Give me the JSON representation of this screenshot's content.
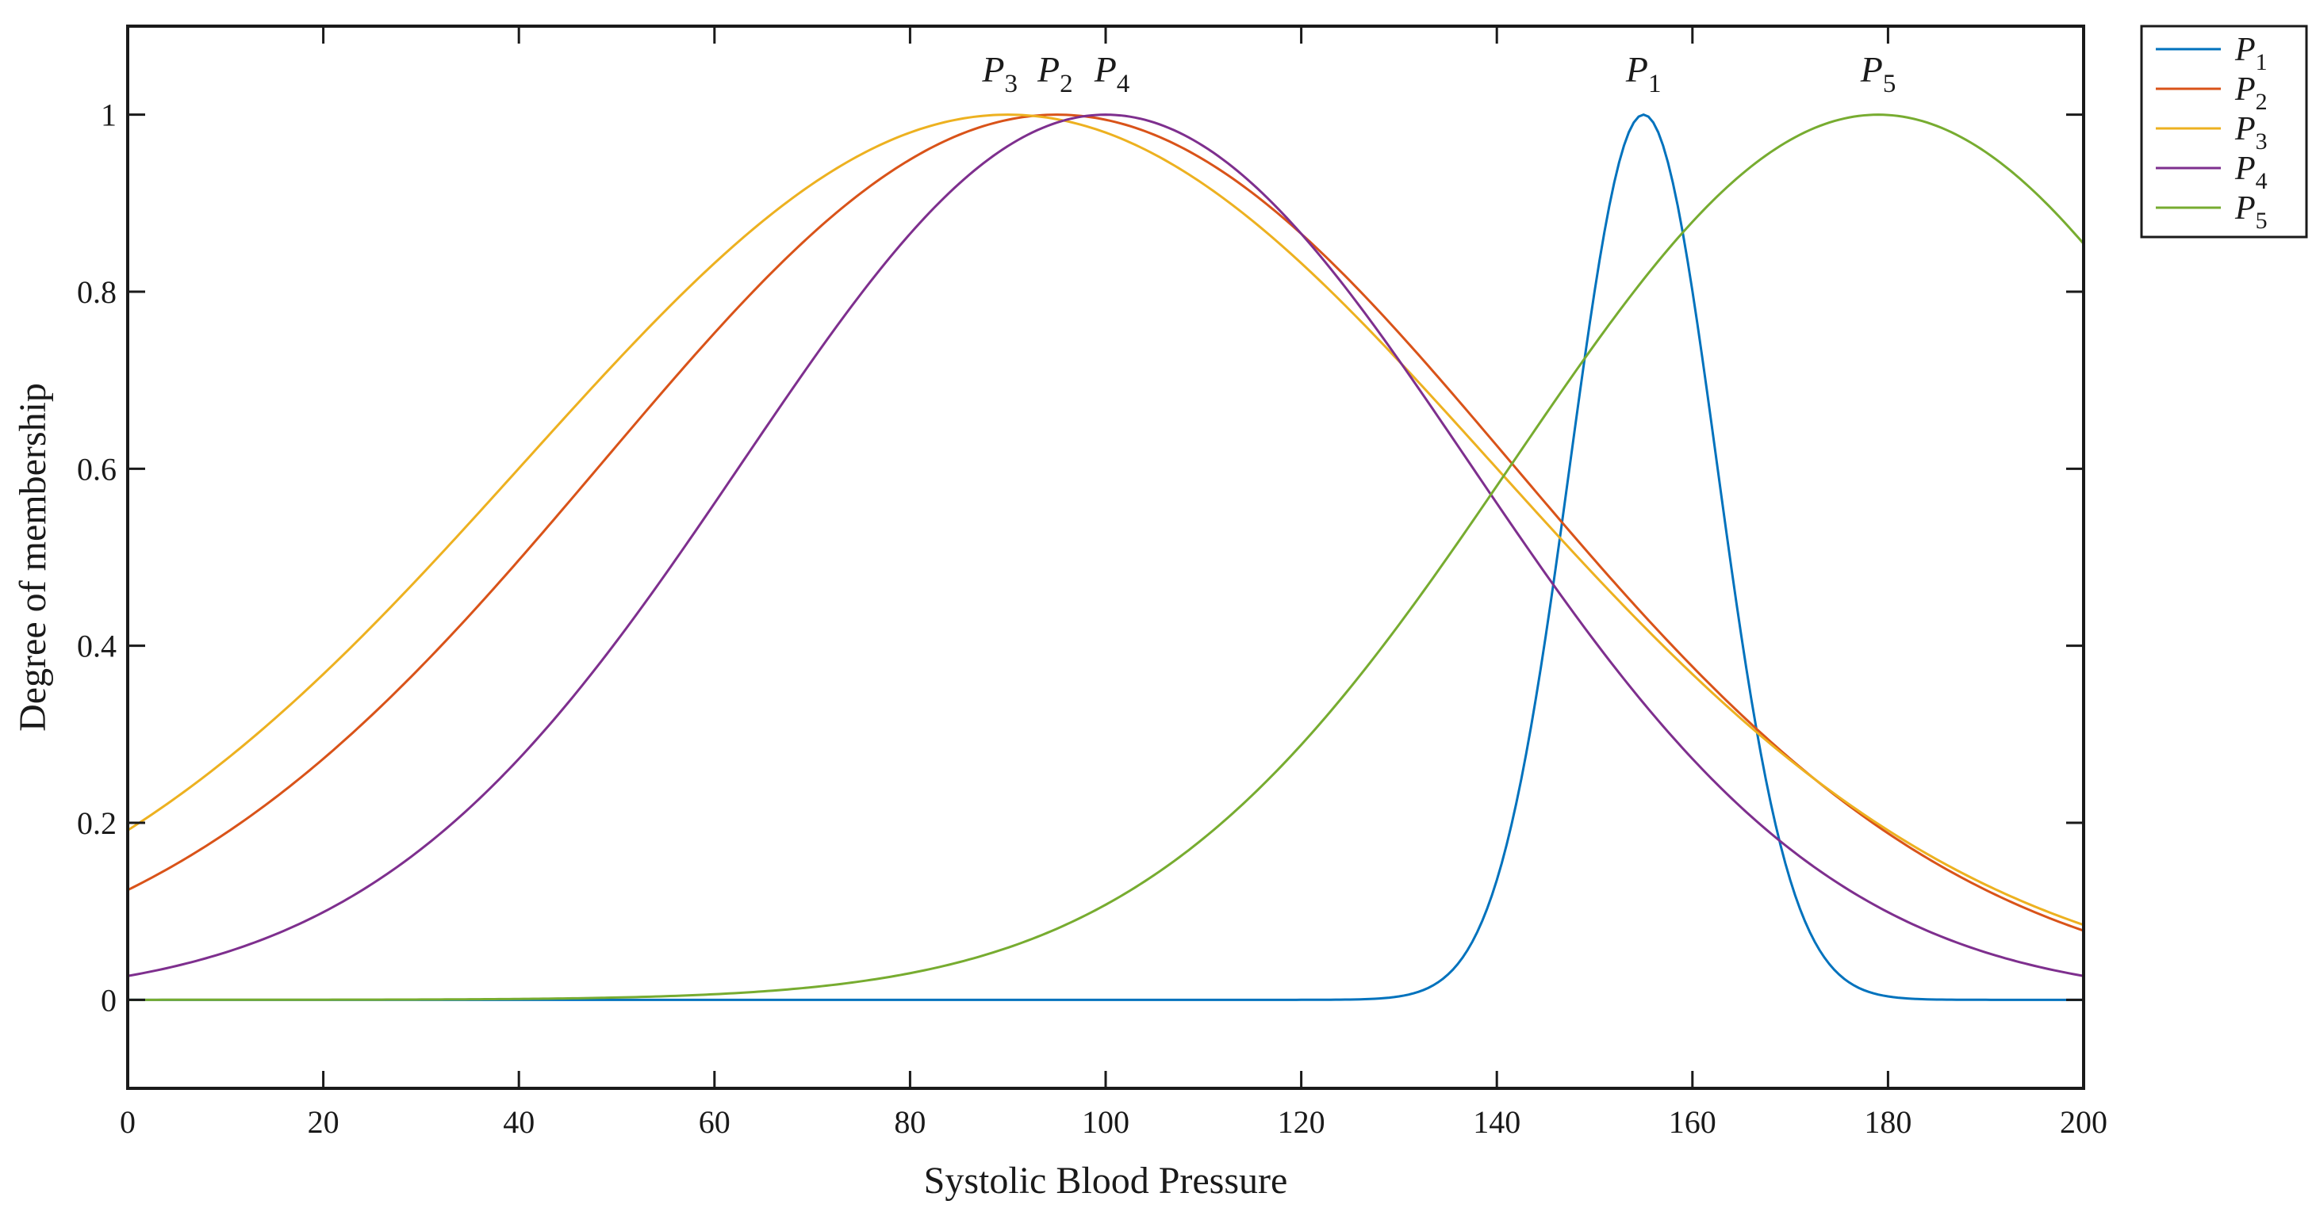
{
  "chart_data": {
    "type": "line",
    "title": "",
    "xlabel": "Systolic Blood Pressure",
    "ylabel": "Degree of membership",
    "xlim": [
      0,
      200
    ],
    "ylim": [
      -0.1,
      1.1
    ],
    "xticks": [
      0,
      20,
      40,
      60,
      80,
      100,
      120,
      140,
      160,
      180,
      200
    ],
    "yticks": [
      0,
      0.2,
      0.4,
      0.6,
      0.8,
      1
    ],
    "ytick_labels": [
      "0",
      "0.2",
      "0.4",
      "0.6",
      "0.8",
      "1"
    ],
    "grid": false,
    "legend_position": "outside-top-right",
    "series": [
      {
        "name": "P",
        "subscript": "1",
        "color": "#0072BD",
        "function": "gaussian",
        "center": 155,
        "sigma": 7.5
      },
      {
        "name": "P",
        "subscript": "2",
        "color": "#D95319",
        "function": "gaussian",
        "center": 95,
        "sigma": 46.5
      },
      {
        "name": "P",
        "subscript": "3",
        "color": "#EDB120",
        "function": "gaussian",
        "center": 90,
        "sigma": 49.5
      },
      {
        "name": "P",
        "subscript": "4",
        "color": "#7E2F8E",
        "function": "gaussian",
        "center": 100,
        "sigma": 37.2
      },
      {
        "name": "P",
        "subscript": "5",
        "color": "#77AC30",
        "function": "gaussian",
        "center": 179,
        "sigma": 37.4
      }
    ],
    "annotations": [
      {
        "name": "P",
        "subscript": "3",
        "x": 90,
        "y": 1.03
      },
      {
        "name": "P",
        "subscript": "2",
        "x": 95,
        "y": 1.03
      },
      {
        "name": "P",
        "subscript": "4",
        "x": 100,
        "y": 1.03
      },
      {
        "name": "P",
        "subscript": "1",
        "x": 155,
        "y": 1.03
      },
      {
        "name": "P",
        "subscript": "5",
        "x": 179,
        "y": 1.03
      }
    ]
  }
}
